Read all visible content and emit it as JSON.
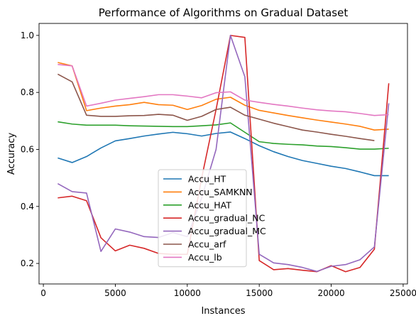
{
  "chart_data": {
    "type": "line",
    "title": "Performance of Algorithms on Gradual Dataset",
    "xlabel": "Instances",
    "ylabel": "Accuracy",
    "xlim": [
      -300,
      25300
    ],
    "ylim": [
      0.128,
      1.042
    ],
    "xticks": [
      0,
      5000,
      10000,
      15000,
      20000,
      25000
    ],
    "yticks": [
      0.2,
      0.4,
      0.6,
      0.8,
      1.0
    ],
    "grid": false,
    "legend_position": "lower-center",
    "x": [
      1000,
      2000,
      3000,
      4000,
      5000,
      6000,
      7000,
      8000,
      9000,
      10000,
      11000,
      12000,
      13000,
      14000,
      15000,
      16000,
      17000,
      18000,
      19000,
      20000,
      21000,
      22000,
      23000,
      24000
    ],
    "series": [
      {
        "name": "Accu_HT",
        "color": "#1f77b4",
        "values": [
          0.57,
          0.554,
          0.575,
          0.605,
          0.63,
          0.638,
          0.647,
          0.654,
          0.66,
          0.655,
          0.647,
          0.656,
          0.661,
          0.638,
          0.613,
          0.592,
          0.575,
          0.561,
          0.551,
          0.541,
          0.533,
          0.521,
          0.508,
          0.508
        ]
      },
      {
        "name": "Accu_SAMKNN",
        "color": "#ff7f0e",
        "values": [
          0.905,
          0.893,
          0.736,
          0.745,
          0.752,
          0.757,
          0.765,
          0.757,
          0.755,
          0.74,
          0.754,
          0.776,
          0.783,
          0.755,
          0.737,
          0.728,
          0.719,
          0.711,
          0.703,
          0.696,
          0.689,
          0.681,
          0.668,
          0.671
        ]
      },
      {
        "name": "Accu_HAT",
        "color": "#2ca02c",
        "values": [
          0.697,
          0.689,
          0.685,
          0.685,
          0.685,
          0.683,
          0.682,
          0.681,
          0.68,
          0.68,
          0.683,
          0.686,
          0.693,
          0.66,
          0.627,
          0.621,
          0.618,
          0.616,
          0.612,
          0.61,
          0.606,
          0.601,
          0.601,
          0.604
        ]
      },
      {
        "name": "Accu_gradual_NC",
        "color": "#d62728",
        "values": [
          0.43,
          0.436,
          0.42,
          0.29,
          0.244,
          0.264,
          0.253,
          0.235,
          0.232,
          0.232,
          0.5,
          0.74,
          1.0,
          0.993,
          0.21,
          0.178,
          0.182,
          0.176,
          0.171,
          0.192,
          0.171,
          0.186,
          0.25,
          0.832
        ]
      },
      {
        "name": "Accu_gradual_MC",
        "color": "#9467bd",
        "values": [
          0.48,
          0.452,
          0.447,
          0.242,
          0.321,
          0.31,
          0.294,
          0.291,
          0.308,
          0.294,
          0.43,
          0.6,
          1.0,
          0.855,
          0.232,
          0.202,
          0.196,
          0.186,
          0.172,
          0.19,
          0.196,
          0.213,
          0.258,
          0.762
        ]
      },
      {
        "name": "Accu_arf",
        "color": "#8c564b",
        "values": [
          0.864,
          0.837,
          0.72,
          0.716,
          0.716,
          0.718,
          0.719,
          0.723,
          0.72,
          0.702,
          0.716,
          0.74,
          0.748,
          0.72,
          0.706,
          0.692,
          0.68,
          0.668,
          0.661,
          0.653,
          0.646,
          0.638,
          0.631,
          null
        ]
      },
      {
        "name": "Accu_lb",
        "color": "#e377c2",
        "values": [
          0.898,
          0.893,
          0.752,
          0.762,
          0.773,
          0.779,
          0.785,
          0.792,
          0.792,
          0.787,
          0.781,
          0.799,
          0.802,
          0.773,
          0.765,
          0.758,
          0.752,
          0.745,
          0.739,
          0.735,
          0.732,
          0.726,
          0.719,
          0.722
        ]
      }
    ]
  }
}
